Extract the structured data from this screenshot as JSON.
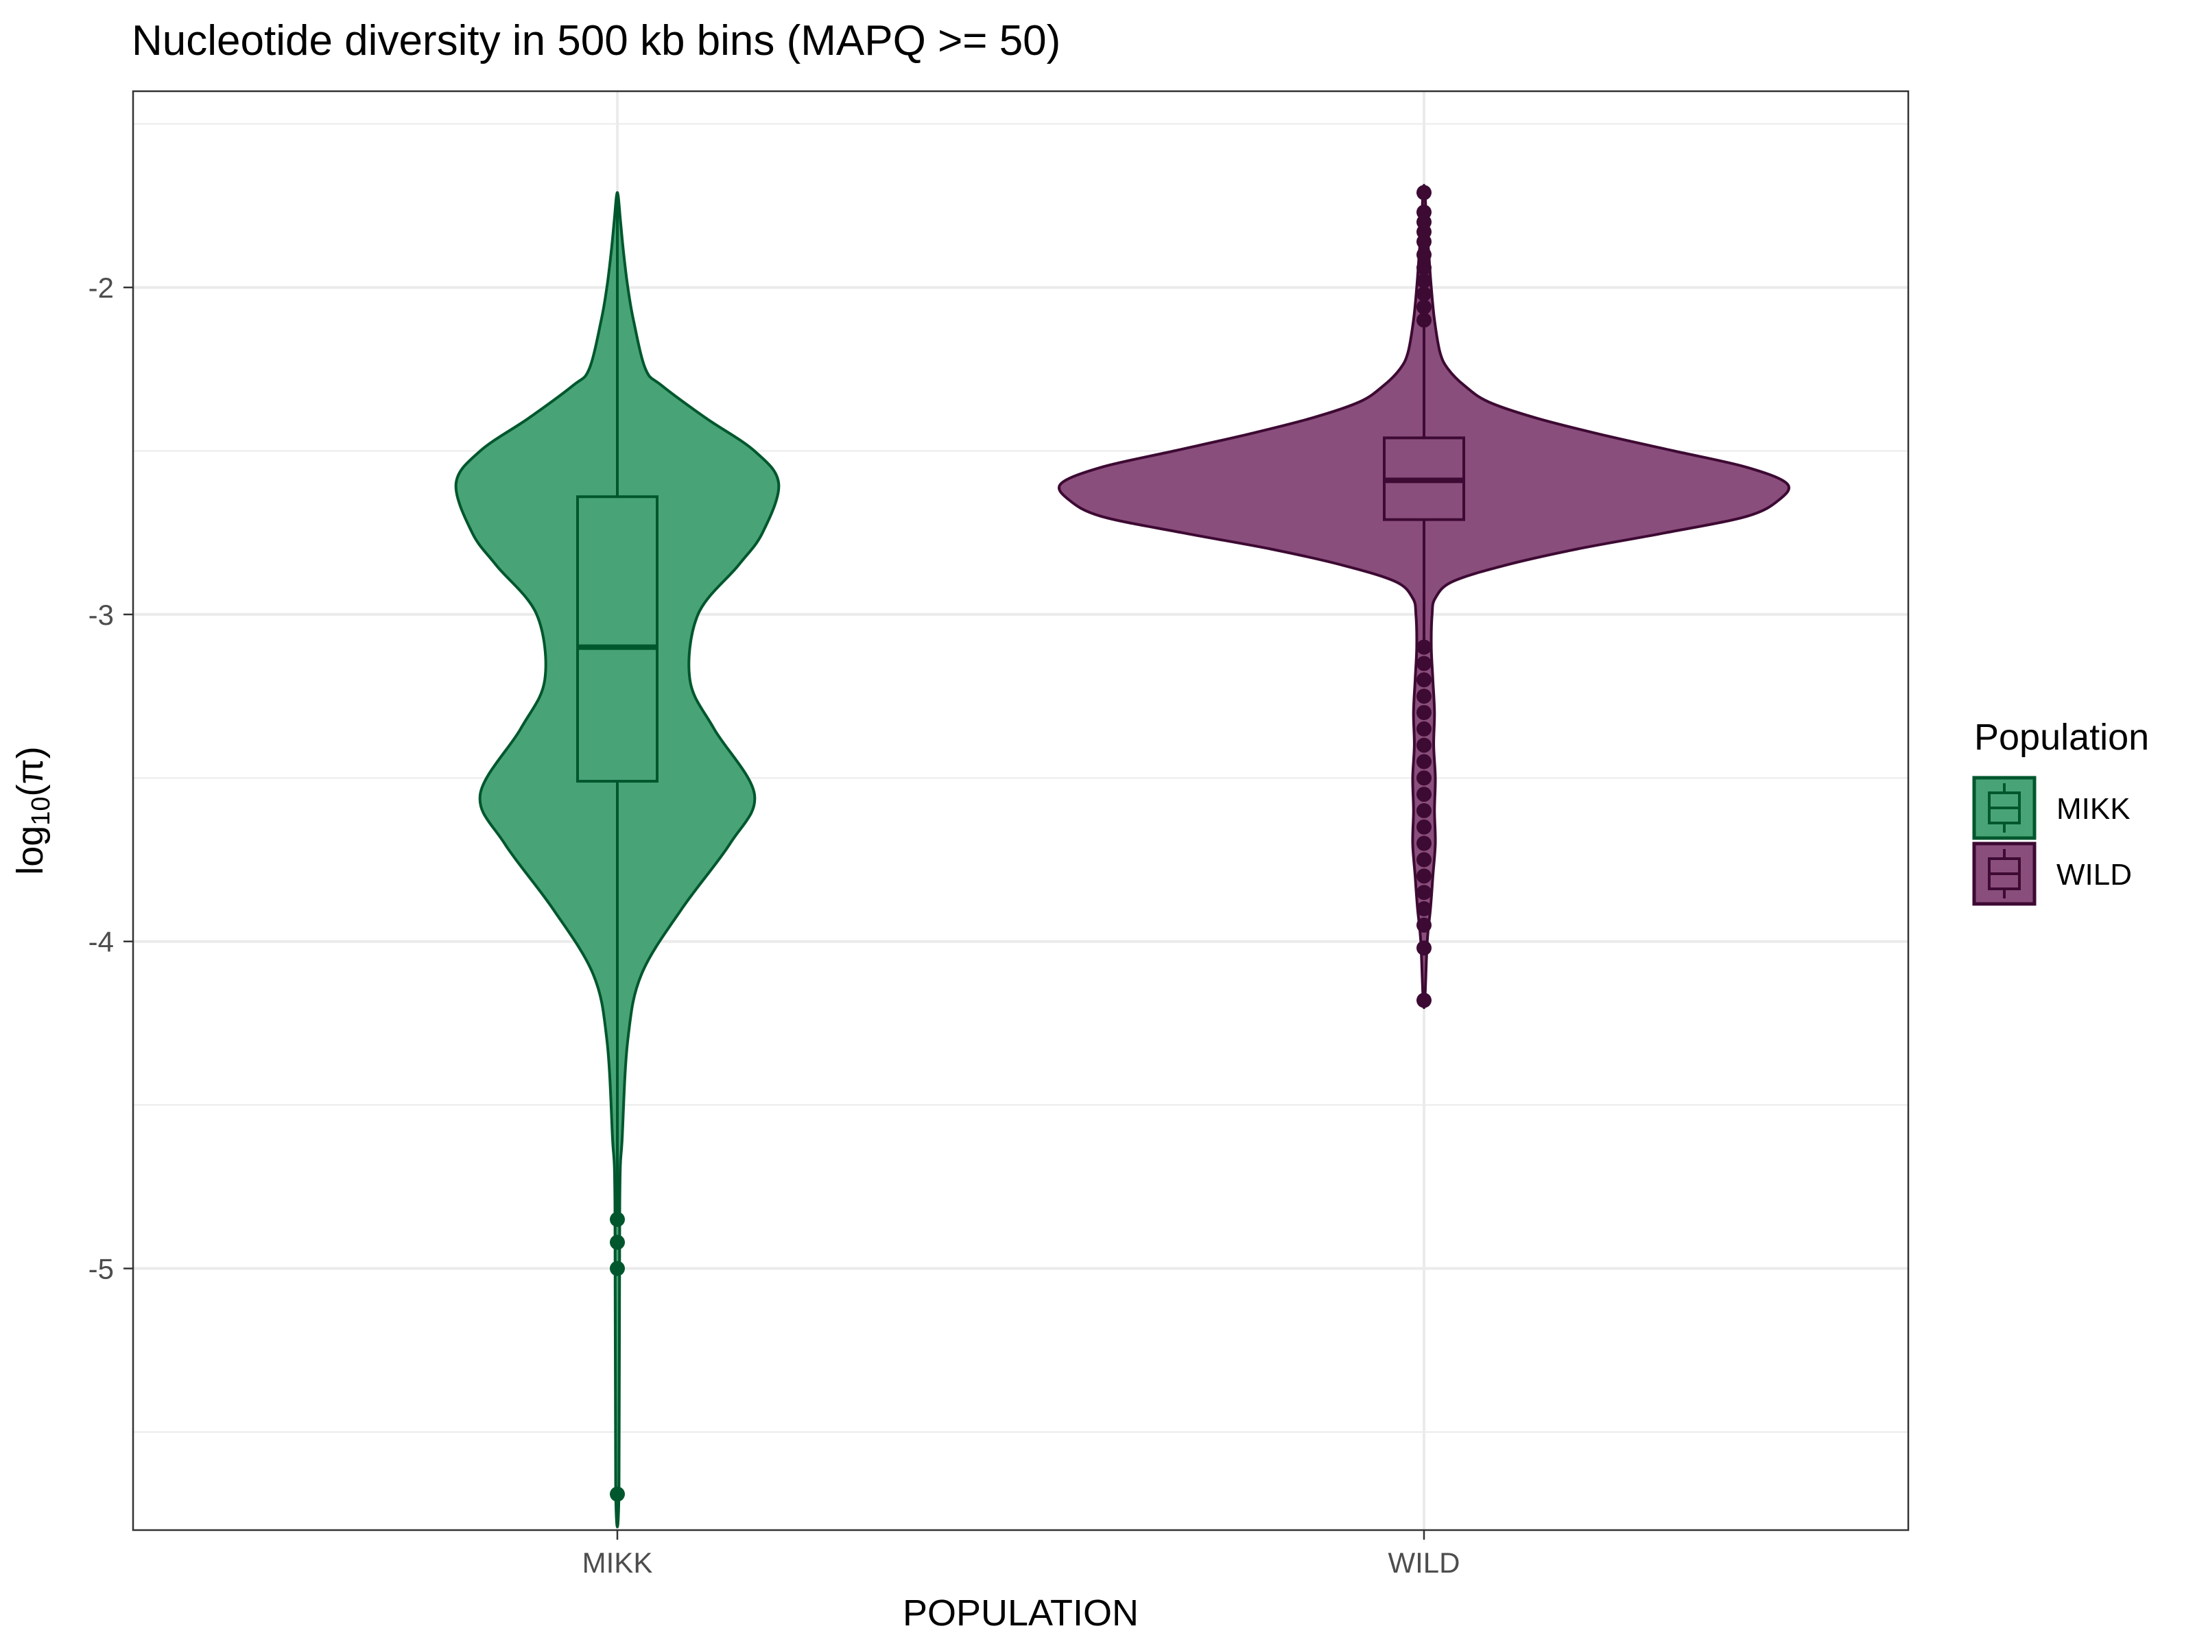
{
  "chart_data": {
    "type": "violin",
    "title": "Nucleotide diversity in 500 kb bins (MAPQ >= 50)",
    "xlabel": "POPULATION",
    "ylabel": {
      "base": "log",
      "subscript": "10",
      "suffix": "(π)"
    },
    "categories": [
      "MIKK",
      "WILD"
    ],
    "ylim": [
      -5.8,
      -1.4
    ],
    "yticks": [
      -5,
      -4,
      -3,
      -2
    ],
    "ytick_labels": [
      "-5",
      "-4",
      "-3",
      "-2"
    ],
    "grid": true,
    "legend": {
      "title": "Population",
      "position": "right",
      "entries": [
        "MIKK",
        "WILD"
      ]
    },
    "series": [
      {
        "name": "MIKK",
        "fill": "#48a477",
        "stroke": "#00572d",
        "violin": {
          "y": [
            -5.68,
            -4.8,
            -4.6,
            -4.3,
            -4.1,
            -3.9,
            -3.7,
            -3.55,
            -3.35,
            -3.2,
            -3.0,
            -2.85,
            -2.75,
            -2.6,
            -2.5,
            -2.4,
            -2.3,
            -2.25,
            -2.1,
            -2.0,
            -1.9,
            -1.8,
            -1.72
          ],
          "half_width": [
            0.002,
            0.003,
            0.006,
            0.013,
            0.03,
            0.08,
            0.14,
            0.17,
            0.12,
            0.09,
            0.1,
            0.15,
            0.18,
            0.2,
            0.17,
            0.11,
            0.055,
            0.035,
            0.02,
            0.013,
            0.008,
            0.004,
            0.001
          ]
        },
        "box": {
          "q1": -3.51,
          "median": -3.1,
          "q3": -2.64,
          "whisker_low": -4.85,
          "whisker_high": -1.72
        },
        "outliers": [
          -4.85,
          -4.92,
          -5.0,
          -5.69
        ]
      },
      {
        "name": "WILD",
        "fill": "#8a4e7c",
        "stroke": "#3d0a33",
        "violin": {
          "y": [
            -4.18,
            -4.0,
            -3.9,
            -3.8,
            -3.7,
            -3.6,
            -3.5,
            -3.4,
            -3.3,
            -3.2,
            -3.1,
            -3.0,
            -2.95,
            -2.9,
            -2.85,
            -2.8,
            -2.75,
            -2.7,
            -2.65,
            -2.6,
            -2.55,
            -2.5,
            -2.45,
            -2.4,
            -2.35,
            -2.3,
            -2.25,
            -2.2,
            -2.1,
            -2.0,
            -1.9,
            -1.8,
            -1.7
          ],
          "half_width": [
            0.001,
            0.004,
            0.008,
            0.011,
            0.014,
            0.013,
            0.014,
            0.012,
            0.013,
            0.011,
            0.009,
            0.01,
            0.014,
            0.035,
            0.1,
            0.19,
            0.3,
            0.4,
            0.44,
            0.45,
            0.4,
            0.31,
            0.22,
            0.14,
            0.08,
            0.05,
            0.03,
            0.02,
            0.013,
            0.009,
            0.006,
            0.003,
            0.001
          ]
        },
        "box": {
          "q1": -2.71,
          "median": -2.59,
          "q3": -2.46,
          "whisker_low": -3.08,
          "whisker_high": -2.1
        },
        "outliers": [
          -1.71,
          -1.77,
          -1.8,
          -1.83,
          -1.86,
          -1.9,
          -1.94,
          -1.98,
          -2.02,
          -2.06,
          -2.1,
          -3.1,
          -3.15,
          -3.2,
          -3.25,
          -3.3,
          -3.35,
          -3.4,
          -3.45,
          -3.5,
          -3.55,
          -3.6,
          -3.65,
          -3.7,
          -3.75,
          -3.8,
          -3.85,
          -3.9,
          -3.95,
          -4.02,
          -4.18
        ]
      }
    ]
  }
}
